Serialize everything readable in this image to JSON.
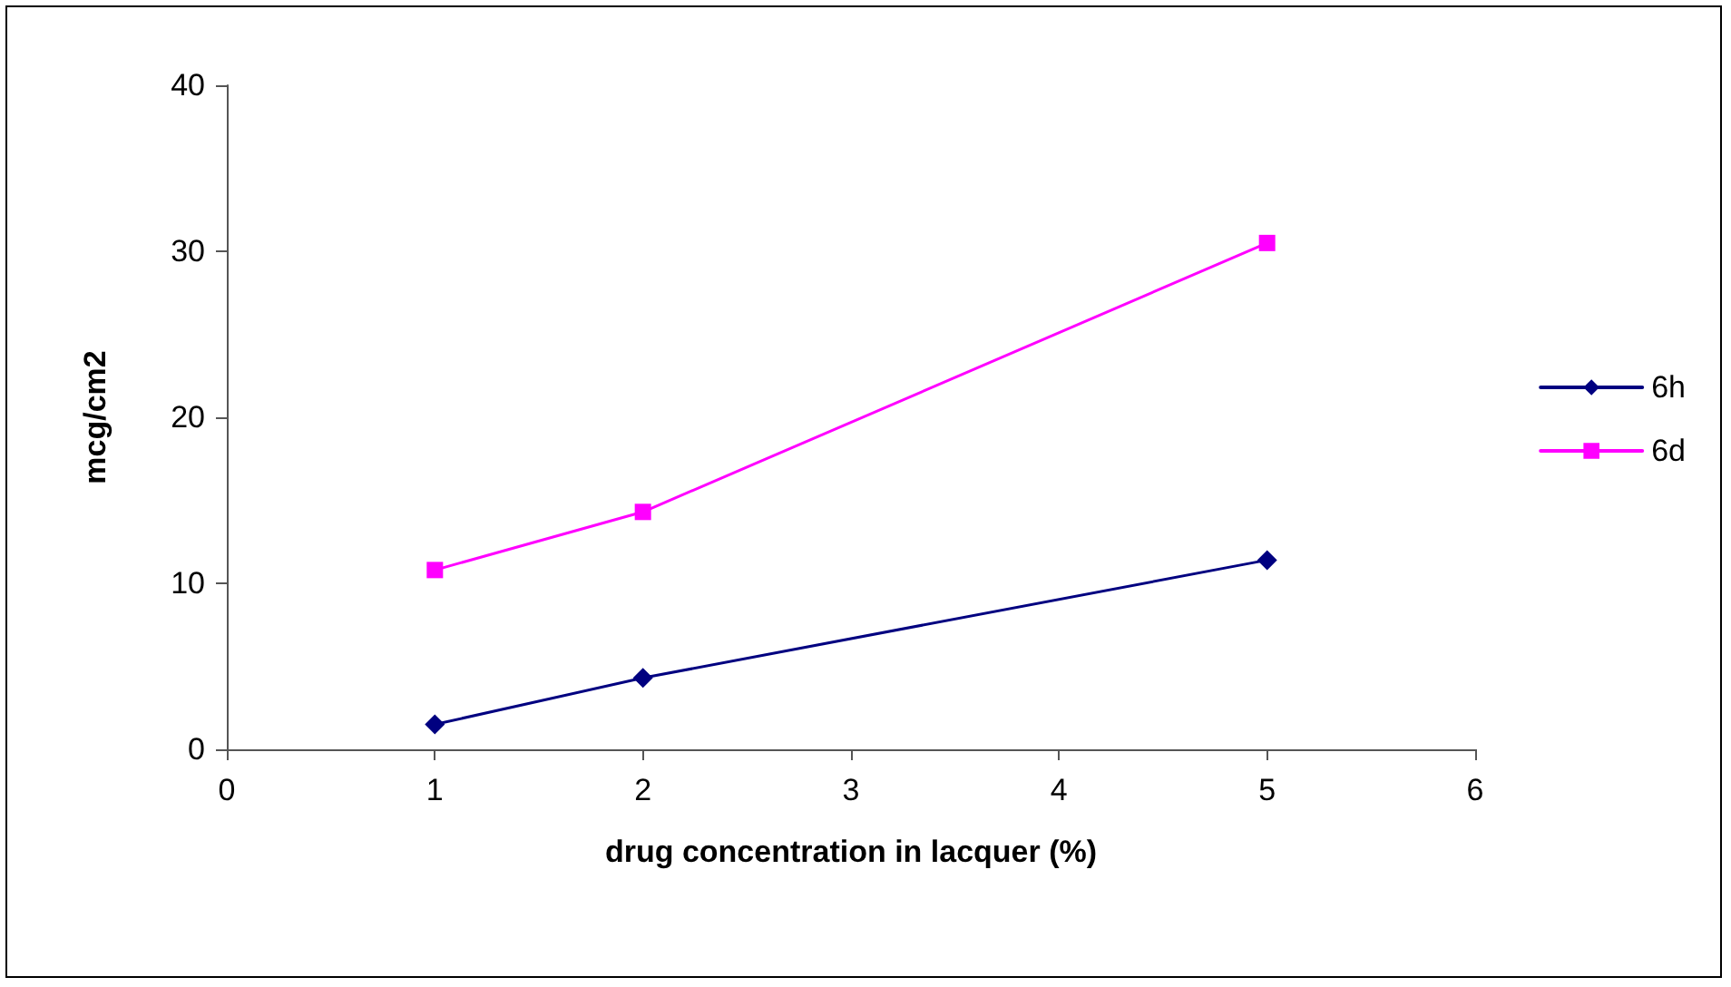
{
  "chart_data": {
    "type": "line",
    "xlabel": "drug concentration in lacquer (%)",
    "ylabel": "mcg/cm2",
    "series": [
      {
        "name": "6h",
        "color": "#000080",
        "marker": "diamond",
        "x": [
          1,
          2,
          5
        ],
        "values": [
          1.5,
          4.3,
          11.4
        ]
      },
      {
        "name": "6d",
        "color": "#ff00ff",
        "marker": "square",
        "x": [
          1,
          2,
          5
        ],
        "values": [
          10.8,
          14.3,
          30.5
        ]
      }
    ],
    "xlim": [
      0,
      6
    ],
    "xticks": [
      0,
      1,
      2,
      3,
      4,
      5,
      6
    ],
    "ylim": [
      0,
      40
    ],
    "yticks": [
      0,
      10,
      20,
      30,
      40
    ],
    "grid": false,
    "legend": "right",
    "line_style": "solid"
  }
}
